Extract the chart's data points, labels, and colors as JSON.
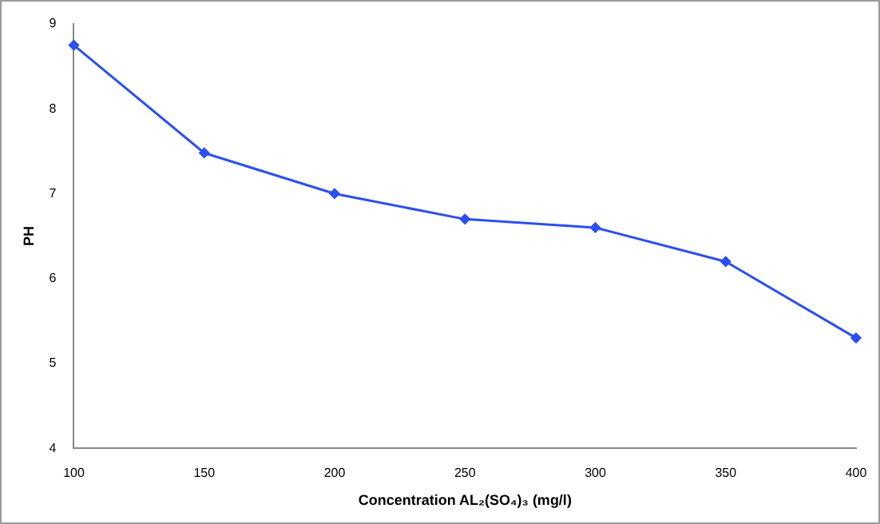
{
  "chart_data": {
    "type": "line",
    "xlabel": "Concentration AL₂(SO₄)₃ (mg/l)",
    "ylabel": "PH",
    "categories": [
      "100",
      "150",
      "200",
      "250",
      "300",
      "350",
      "400"
    ],
    "series": [
      {
        "color": "#2b4ff0",
        "values": [
          8.75,
          7.48,
          7.0,
          6.7,
          6.6,
          6.2,
          5.3
        ]
      }
    ],
    "ylim": [
      4,
      9
    ],
    "yticks": [
      4,
      5,
      6,
      7,
      8,
      9
    ],
    "grid": false,
    "legend": false,
    "marker": "diamond",
    "line_style": "solid"
  }
}
